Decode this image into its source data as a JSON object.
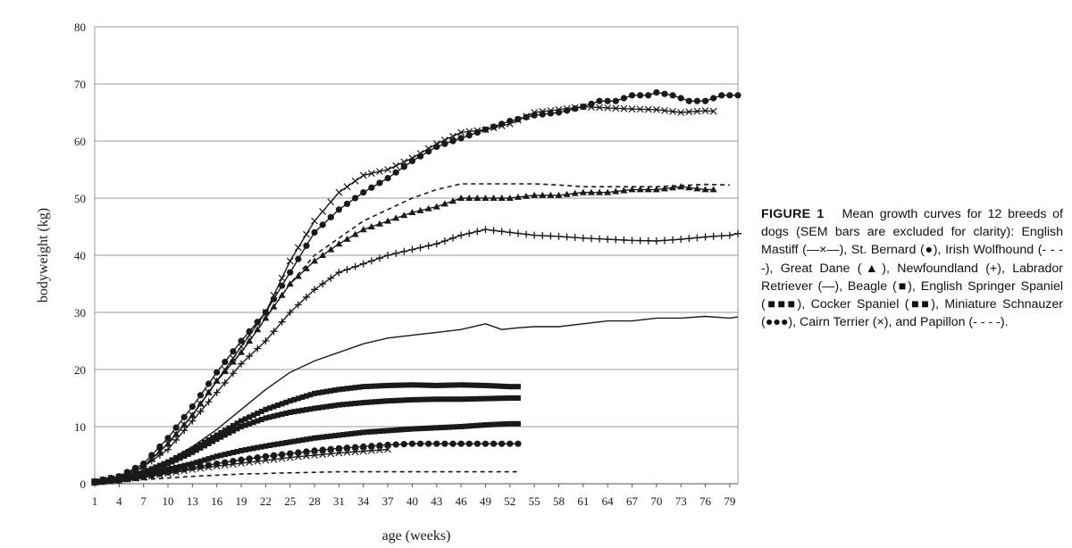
{
  "chart_data": {
    "type": "line",
    "title": "",
    "xlabel": "age (weeks)",
    "ylabel": "bodyweight (kg)",
    "xlim": [
      1,
      80
    ],
    "ylim": [
      0,
      80
    ],
    "x_ticks": [
      "1",
      "4",
      "7",
      "10",
      "13",
      "16",
      "19",
      "22",
      "25",
      "28",
      "31",
      "34",
      "37",
      "40",
      "43",
      "46",
      "49",
      "52",
      "55",
      "58",
      "61",
      "64",
      "67",
      "70",
      "73",
      "76",
      "79"
    ],
    "y_ticks": [
      "0",
      "10",
      "20",
      "30",
      "40",
      "50",
      "60",
      "70",
      "80"
    ],
    "grid": "horizontal",
    "legend": "caption",
    "series": [
      {
        "name": "English Mastiff",
        "marker": "x-line",
        "color": "#1a1a1a",
        "points": [
          [
            1,
            0.4
          ],
          [
            4,
            1.2
          ],
          [
            7,
            3
          ],
          [
            10,
            7
          ],
          [
            13,
            12
          ],
          [
            16,
            18
          ],
          [
            19,
            24
          ],
          [
            22,
            30
          ],
          [
            25,
            39
          ],
          [
            28,
            46
          ],
          [
            31,
            51
          ],
          [
            34,
            54
          ],
          [
            37,
            55
          ],
          [
            40,
            57
          ],
          [
            43,
            59.5
          ],
          [
            46,
            61.5
          ],
          [
            49,
            62
          ],
          [
            52,
            63
          ],
          [
            55,
            65
          ],
          [
            58,
            65.5
          ],
          [
            61,
            66
          ],
          [
            64,
            65.8
          ],
          [
            67,
            65.6
          ],
          [
            70,
            65.5
          ],
          [
            73,
            65
          ],
          [
            76,
            65.3
          ],
          [
            77,
            65.2
          ]
        ]
      },
      {
        "name": "St. Bernard",
        "marker": "filled-circle",
        "color": "#1a1a1a",
        "points": [
          [
            1,
            0.4
          ],
          [
            4,
            1.3
          ],
          [
            7,
            3.5
          ],
          [
            10,
            8
          ],
          [
            13,
            13.5
          ],
          [
            16,
            19.5
          ],
          [
            19,
            25
          ],
          [
            22,
            30
          ],
          [
            25,
            37
          ],
          [
            28,
            44
          ],
          [
            31,
            48
          ],
          [
            34,
            51
          ],
          [
            37,
            53.5
          ],
          [
            40,
            56.5
          ],
          [
            43,
            59
          ],
          [
            46,
            60.5
          ],
          [
            49,
            62
          ],
          [
            52,
            63.5
          ],
          [
            55,
            64.5
          ],
          [
            58,
            65
          ],
          [
            61,
            66
          ],
          [
            63,
            67
          ],
          [
            65,
            67
          ],
          [
            67,
            68
          ],
          [
            69,
            68
          ],
          [
            70,
            68.5
          ],
          [
            72,
            68
          ],
          [
            74,
            67
          ],
          [
            76,
            67
          ],
          [
            78,
            68
          ],
          [
            80,
            68
          ]
        ]
      },
      {
        "name": "Irish Wolfhound",
        "marker": "dash",
        "color": "#1a1a1a",
        "points": [
          [
            1,
            0.4
          ],
          [
            4,
            1.2
          ],
          [
            7,
            3
          ],
          [
            10,
            7
          ],
          [
            13,
            12
          ],
          [
            16,
            18
          ],
          [
            19,
            23
          ],
          [
            22,
            29
          ],
          [
            25,
            35
          ],
          [
            28,
            40
          ],
          [
            31,
            43
          ],
          [
            34,
            46
          ],
          [
            37,
            48
          ],
          [
            40,
            50
          ],
          [
            43,
            51.5
          ],
          [
            46,
            52.5
          ],
          [
            49,
            52.5
          ],
          [
            52,
            52.5
          ],
          [
            55,
            52.5
          ],
          [
            58,
            52.3
          ],
          [
            61,
            52
          ],
          [
            64,
            52
          ],
          [
            67,
            52
          ],
          [
            70,
            52
          ],
          [
            73,
            52.2
          ],
          [
            76,
            52.4
          ],
          [
            79,
            52.3
          ]
        ]
      },
      {
        "name": "Great Dane",
        "marker": "filled-triangle",
        "color": "#1a1a1a",
        "points": [
          [
            1,
            0.4
          ],
          [
            4,
            1.2
          ],
          [
            7,
            3
          ],
          [
            10,
            7
          ],
          [
            13,
            12
          ],
          [
            16,
            18
          ],
          [
            19,
            23
          ],
          [
            22,
            29
          ],
          [
            25,
            35
          ],
          [
            28,
            39
          ],
          [
            31,
            42
          ],
          [
            34,
            44.5
          ],
          [
            37,
            46
          ],
          [
            40,
            47.5
          ],
          [
            43,
            48.5
          ],
          [
            46,
            50
          ],
          [
            49,
            50
          ],
          [
            52,
            50
          ],
          [
            55,
            50.5
          ],
          [
            58,
            50.5
          ],
          [
            61,
            51
          ],
          [
            64,
            51
          ],
          [
            67,
            51.5
          ],
          [
            70,
            51.5
          ],
          [
            73,
            52
          ],
          [
            76,
            51.5
          ],
          [
            77,
            51.5
          ]
        ]
      },
      {
        "name": "Newfoundland",
        "marker": "plus",
        "color": "#1a1a1a",
        "points": [
          [
            1,
            0.4
          ],
          [
            4,
            1.2
          ],
          [
            7,
            3
          ],
          [
            10,
            6
          ],
          [
            13,
            11
          ],
          [
            16,
            16
          ],
          [
            19,
            21
          ],
          [
            22,
            25
          ],
          [
            25,
            30
          ],
          [
            28,
            34
          ],
          [
            31,
            37
          ],
          [
            34,
            38.5
          ],
          [
            37,
            40
          ],
          [
            40,
            41
          ],
          [
            43,
            42
          ],
          [
            46,
            43.5
          ],
          [
            49,
            44.5
          ],
          [
            52,
            44
          ],
          [
            55,
            43.5
          ],
          [
            58,
            43.3
          ],
          [
            61,
            43
          ],
          [
            64,
            42.8
          ],
          [
            67,
            42.6
          ],
          [
            70,
            42.5
          ],
          [
            73,
            42.8
          ],
          [
            76,
            43.2
          ],
          [
            79,
            43.5
          ],
          [
            80,
            43.8
          ]
        ]
      },
      {
        "name": "Labrador Retriever",
        "marker": "line",
        "color": "#1a1a1a",
        "points": [
          [
            1,
            0.3
          ],
          [
            4,
            1
          ],
          [
            7,
            2.2
          ],
          [
            10,
            4
          ],
          [
            13,
            6.5
          ],
          [
            16,
            9.5
          ],
          [
            19,
            13
          ],
          [
            22,
            16.5
          ],
          [
            25,
            19.5
          ],
          [
            28,
            21.5
          ],
          [
            31,
            23
          ],
          [
            34,
            24.5
          ],
          [
            37,
            25.5
          ],
          [
            40,
            26
          ],
          [
            43,
            26.5
          ],
          [
            46,
            27
          ],
          [
            49,
            28
          ],
          [
            51,
            27
          ],
          [
            53,
            27.3
          ],
          [
            55,
            27.5
          ],
          [
            58,
            27.5
          ],
          [
            61,
            28
          ],
          [
            64,
            28.5
          ],
          [
            67,
            28.5
          ],
          [
            70,
            29
          ],
          [
            73,
            29
          ],
          [
            76,
            29.3
          ],
          [
            79,
            29
          ],
          [
            80,
            29.2
          ]
        ]
      },
      {
        "name": "English Springer Spaniel",
        "marker": "filled-square",
        "color": "#1a1a1a",
        "points": [
          [
            1,
            0.3
          ],
          [
            4,
            0.9
          ],
          [
            7,
            2
          ],
          [
            10,
            3.8
          ],
          [
            13,
            6
          ],
          [
            16,
            8.5
          ],
          [
            19,
            11
          ],
          [
            22,
            13
          ],
          [
            25,
            14.5
          ],
          [
            28,
            15.8
          ],
          [
            31,
            16.5
          ],
          [
            34,
            17
          ],
          [
            37,
            17.2
          ],
          [
            40,
            17.3
          ],
          [
            43,
            17.2
          ],
          [
            46,
            17.3
          ],
          [
            49,
            17.2
          ],
          [
            52,
            17
          ],
          [
            53,
            17
          ]
        ]
      },
      {
        "name": "Beagle",
        "marker": "filled-square",
        "color": "#1a1a1a",
        "points": [
          [
            1,
            0.3
          ],
          [
            4,
            0.9
          ],
          [
            7,
            1.9
          ],
          [
            10,
            3.5
          ],
          [
            13,
            5.5
          ],
          [
            16,
            7.8
          ],
          [
            19,
            10
          ],
          [
            22,
            11.5
          ],
          [
            25,
            12.5
          ],
          [
            28,
            13.2
          ],
          [
            31,
            13.8
          ],
          [
            34,
            14.2
          ],
          [
            37,
            14.5
          ],
          [
            40,
            14.7
          ],
          [
            43,
            14.8
          ],
          [
            46,
            14.8
          ],
          [
            49,
            14.9
          ],
          [
            52,
            15
          ],
          [
            53,
            15
          ]
        ]
      },
      {
        "name": "Cocker Spaniel",
        "marker": "filled-square",
        "color": "#1a1a1a",
        "points": [
          [
            1,
            0.2
          ],
          [
            4,
            0.7
          ],
          [
            7,
            1.4
          ],
          [
            10,
            2.5
          ],
          [
            13,
            3.5
          ],
          [
            16,
            4.8
          ],
          [
            19,
            5.8
          ],
          [
            22,
            6.6
          ],
          [
            25,
            7.3
          ],
          [
            28,
            8
          ],
          [
            31,
            8.5
          ],
          [
            34,
            9
          ],
          [
            37,
            9.3
          ],
          [
            40,
            9.6
          ],
          [
            43,
            9.8
          ],
          [
            46,
            10
          ],
          [
            49,
            10.3
          ],
          [
            52,
            10.5
          ],
          [
            53,
            10.5
          ]
        ]
      },
      {
        "name": "Miniature Schnauzer",
        "marker": "filled-circle",
        "color": "#1a1a1a",
        "points": [
          [
            1,
            0.2
          ],
          [
            4,
            0.6
          ],
          [
            7,
            1.2
          ],
          [
            10,
            2
          ],
          [
            13,
            2.8
          ],
          [
            16,
            3.5
          ],
          [
            19,
            4.2
          ],
          [
            22,
            4.8
          ],
          [
            25,
            5.3
          ],
          [
            28,
            5.8
          ],
          [
            31,
            6.2
          ],
          [
            34,
            6.5
          ],
          [
            37,
            6.8
          ],
          [
            40,
            7
          ],
          [
            43,
            7
          ],
          [
            46,
            7
          ],
          [
            49,
            7
          ],
          [
            52,
            7
          ],
          [
            53,
            7
          ]
        ]
      },
      {
        "name": "Cairn Terrier",
        "marker": "x",
        "color": "#1a1a1a",
        "points": [
          [
            1,
            0.2
          ],
          [
            4,
            0.6
          ],
          [
            7,
            1.1
          ],
          [
            10,
            1.8
          ],
          [
            13,
            2.5
          ],
          [
            16,
            3.1
          ],
          [
            19,
            3.6
          ],
          [
            22,
            4.1
          ],
          [
            25,
            4.6
          ],
          [
            28,
            5
          ],
          [
            31,
            5.4
          ],
          [
            34,
            5.7
          ],
          [
            37,
            6
          ]
        ]
      },
      {
        "name": "Papillon",
        "marker": "dash",
        "color": "#1a1a1a",
        "points": [
          [
            1,
            0.2
          ],
          [
            4,
            0.4
          ],
          [
            7,
            0.7
          ],
          [
            10,
            1
          ],
          [
            13,
            1.3
          ],
          [
            16,
            1.5
          ],
          [
            19,
            1.7
          ],
          [
            22,
            1.8
          ],
          [
            25,
            1.9
          ],
          [
            28,
            2
          ],
          [
            31,
            2.1
          ],
          [
            34,
            2.1
          ],
          [
            37,
            2.1
          ],
          [
            40,
            2.1
          ],
          [
            43,
            2.1
          ],
          [
            46,
            2.1
          ],
          [
            49,
            2.1
          ],
          [
            52,
            2.1
          ],
          [
            53,
            2.1
          ]
        ]
      }
    ]
  },
  "caption": {
    "label": "FIGURE 1",
    "text": "Mean growth curves for 12 breeds of dogs (SEM bars are excluded for clarity): English Mastiff (—×—), St. Bernard (●), Irish Wolfhound (- - - -), Great Dane (▲), Newfoundland (+), Labrador Retriever (—), Beagle (■), English Springer Spaniel (■■■), Cocker Spaniel (■■), Miniature Schnauzer (●●●), Cairn Terrier (×), and Papillon (- - - -)."
  }
}
